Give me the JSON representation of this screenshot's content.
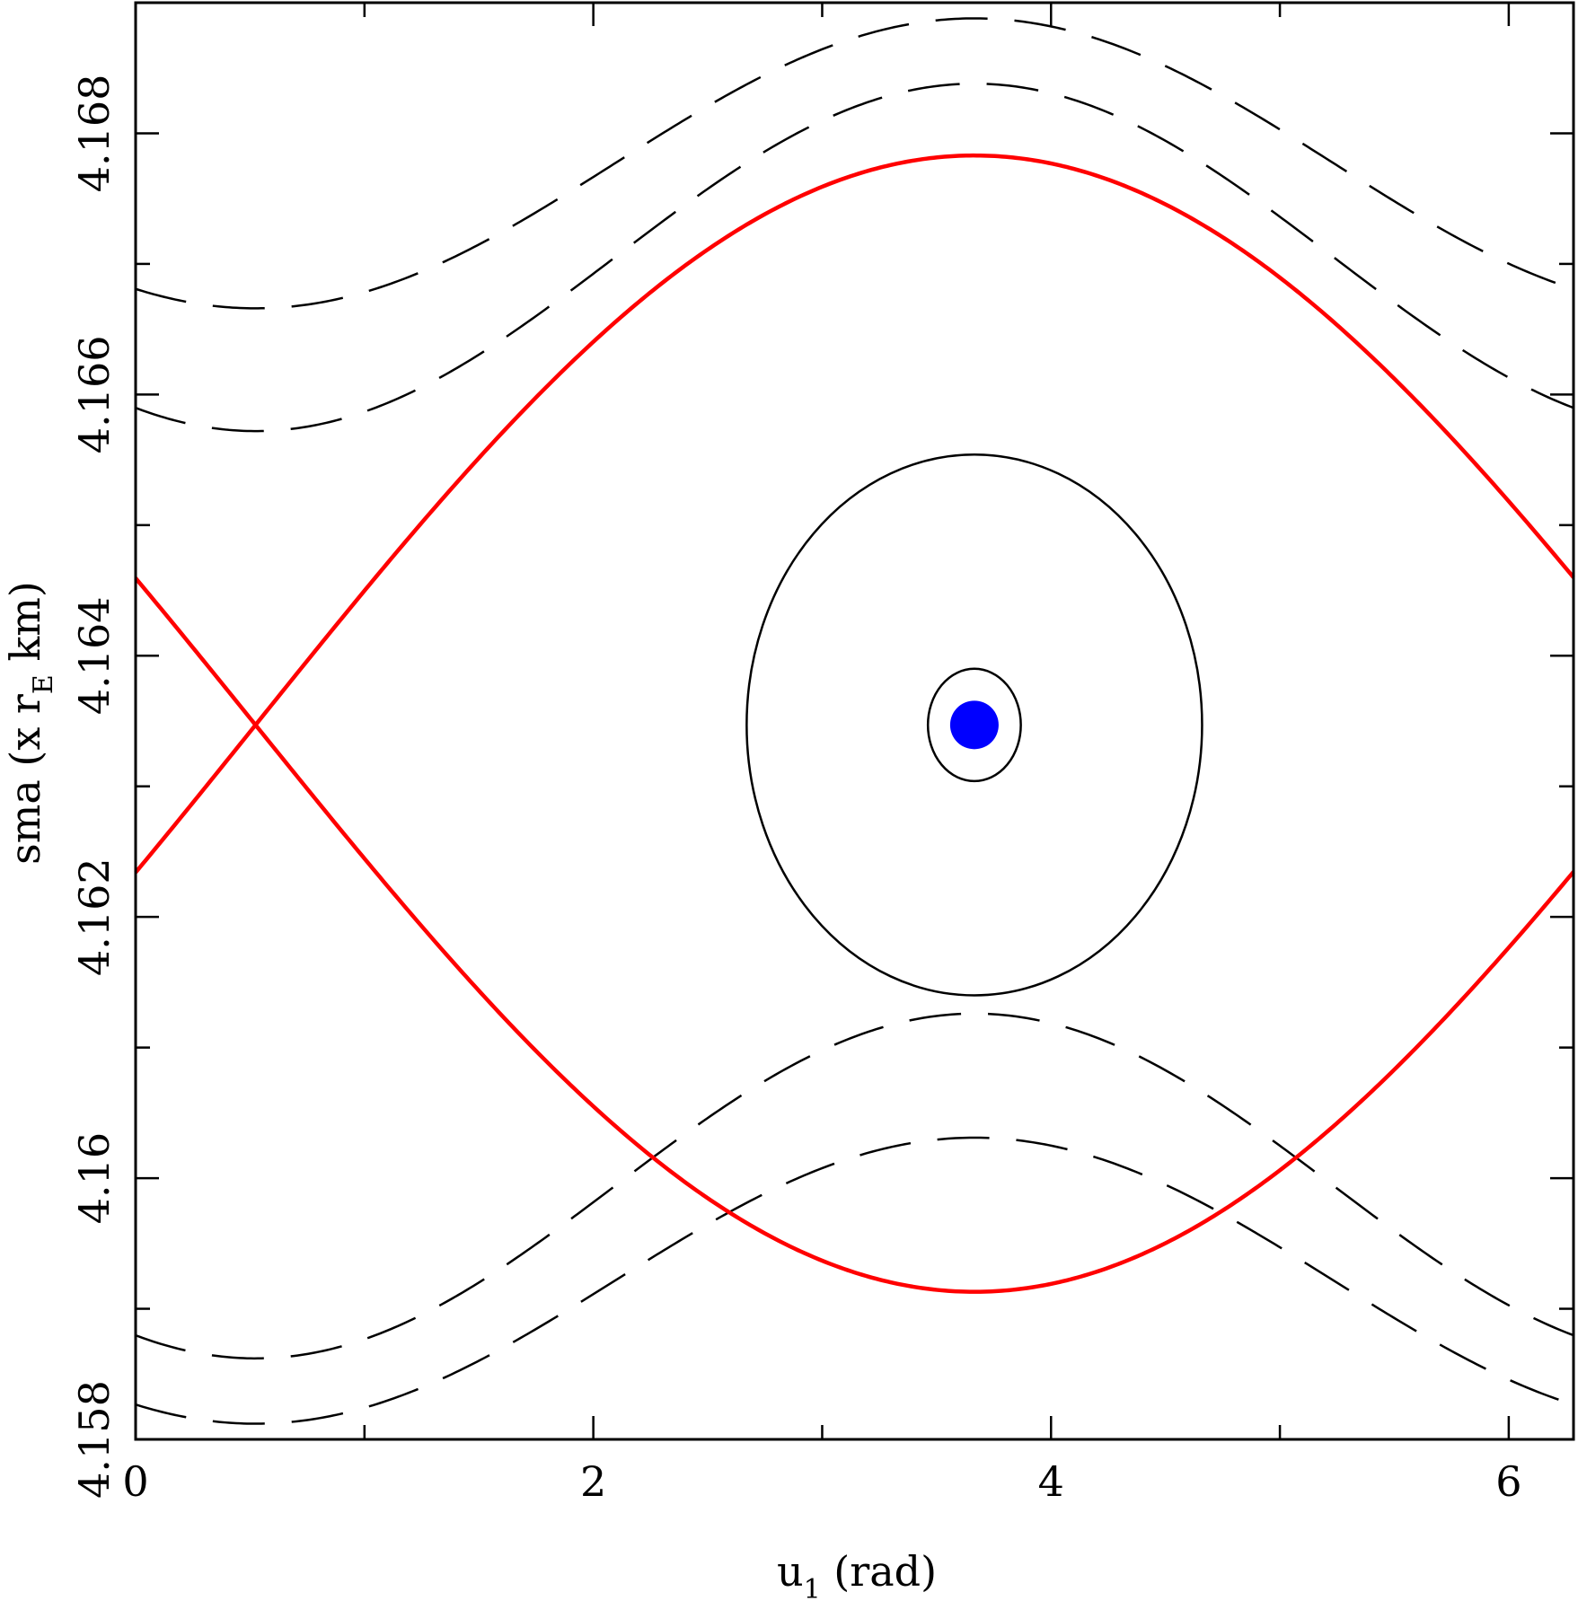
{
  "chart_data": {
    "type": "line",
    "title": "",
    "xlabel": "u",
    "xlabel_subscript": "1",
    "xlabel_suffix": " (rad)",
    "ylabel_prefix": "sma (x r",
    "ylabel_subscript": "E",
    "ylabel_suffix": " km)",
    "xlim": [
      0,
      6.283
    ],
    "ylim": [
      4.158,
      4.169
    ],
    "x_tick_labels": [
      "0",
      "2",
      "4",
      "6"
    ],
    "y_tick_labels": [
      "4.158",
      "4.16",
      "4.162",
      "4.164",
      "4.166",
      "4.168"
    ],
    "grid": false,
    "legend": "none",
    "equilibrium": {
      "x": 3.665,
      "y": 4.16347,
      "color": "#0000ff"
    },
    "separatrix": {
      "color": "#ff0000",
      "center_x": 3.665,
      "center_y": 4.16347,
      "upper_peak": 4.16783,
      "lower_trough": 4.15913,
      "crossing_x": 0.524
    },
    "libration_orbits": [
      {
        "center_x": 3.665,
        "center_y": 4.16347,
        "x_half_width": 0.203,
        "y_half_width": 0.00043,
        "color": "#000000"
      },
      {
        "center_x": 3.665,
        "center_y": 4.16347,
        "x_half_width": 0.995,
        "y_half_width": 0.00207,
        "color": "#000000"
      }
    ],
    "circulation_orbits": [
      {
        "y_max": 4.16888,
        "y_min": 4.16666,
        "extremum_x": 3.665,
        "style": "dashed",
        "color": "#000000"
      },
      {
        "y_max": 4.16838,
        "y_min": 4.16572,
        "extremum_x": 3.665,
        "style": "dashed",
        "color": "#000000"
      },
      {
        "y_max": 4.16126,
        "y_min": 4.15862,
        "extremum_x": 3.665,
        "style": "dashed",
        "color": "#000000"
      },
      {
        "y_max": 4.16031,
        "y_min": 4.15812,
        "extremum_x": 3.665,
        "style": "dashed",
        "color": "#000000"
      }
    ]
  }
}
